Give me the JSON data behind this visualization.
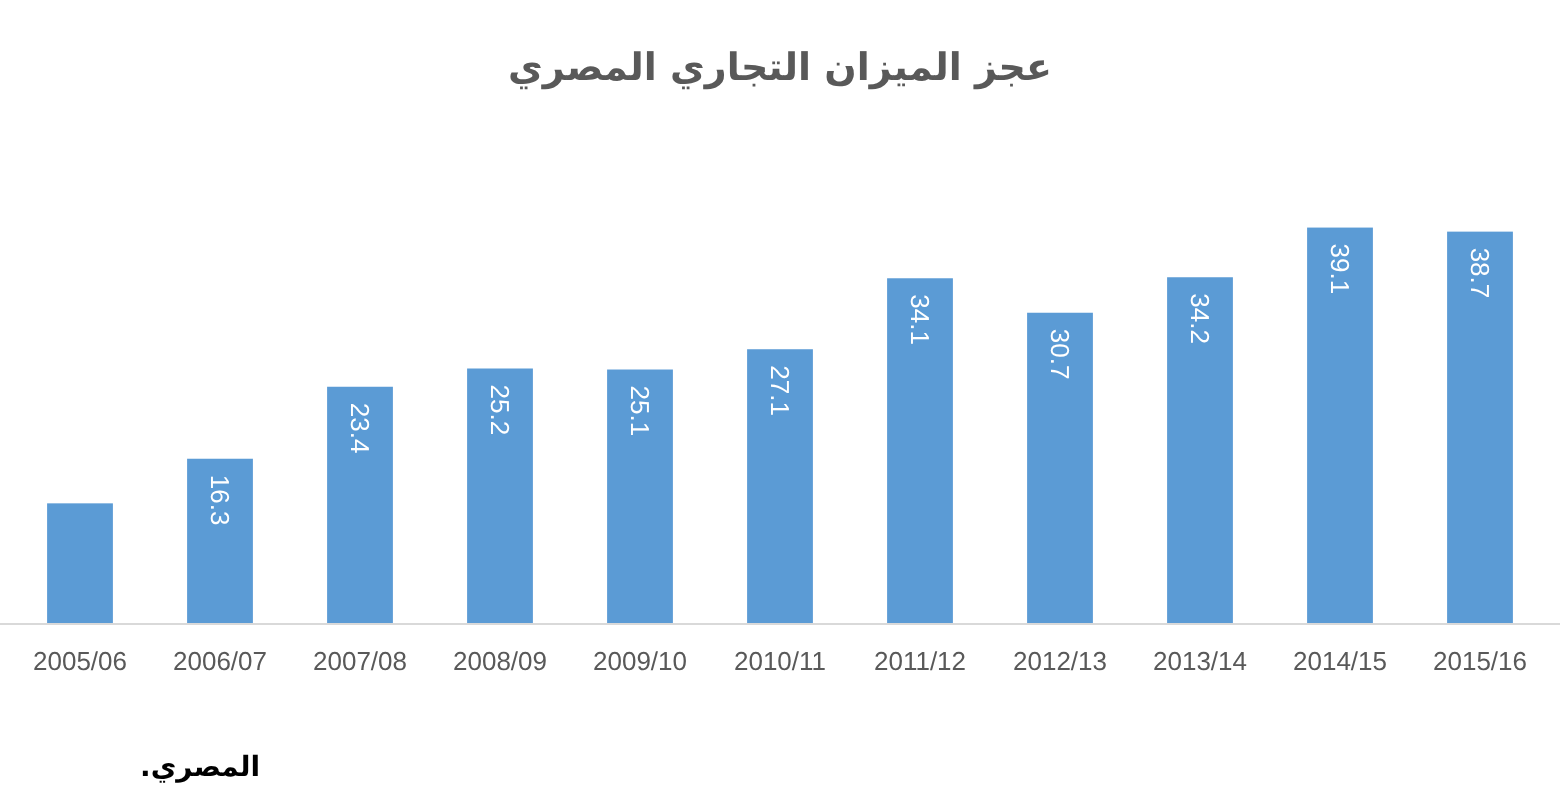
{
  "chart_data": {
    "type": "bar",
    "title": "عجز الميزان التجاري المصري",
    "categories": [
      "2005/06",
      "2006/07",
      "2007/08",
      "2008/09",
      "2009/10",
      "2010/11",
      "2011/12",
      "2012/13",
      "2013/14",
      "2014/15",
      "2015/16"
    ],
    "values": [
      11.9,
      16.3,
      23.4,
      25.2,
      25.1,
      27.1,
      34.1,
      30.7,
      34.2,
      39.1,
      38.7
    ],
    "value_labels": [
      null,
      "16.3",
      "23.4",
      "25.2",
      "25.1",
      "27.1",
      "34.1",
      "30.7",
      "34.2",
      "39.1",
      "38.7"
    ],
    "color": "#5b9bd5",
    "tick_labels": "x",
    "annotations": [
      "المصري."
    ]
  }
}
